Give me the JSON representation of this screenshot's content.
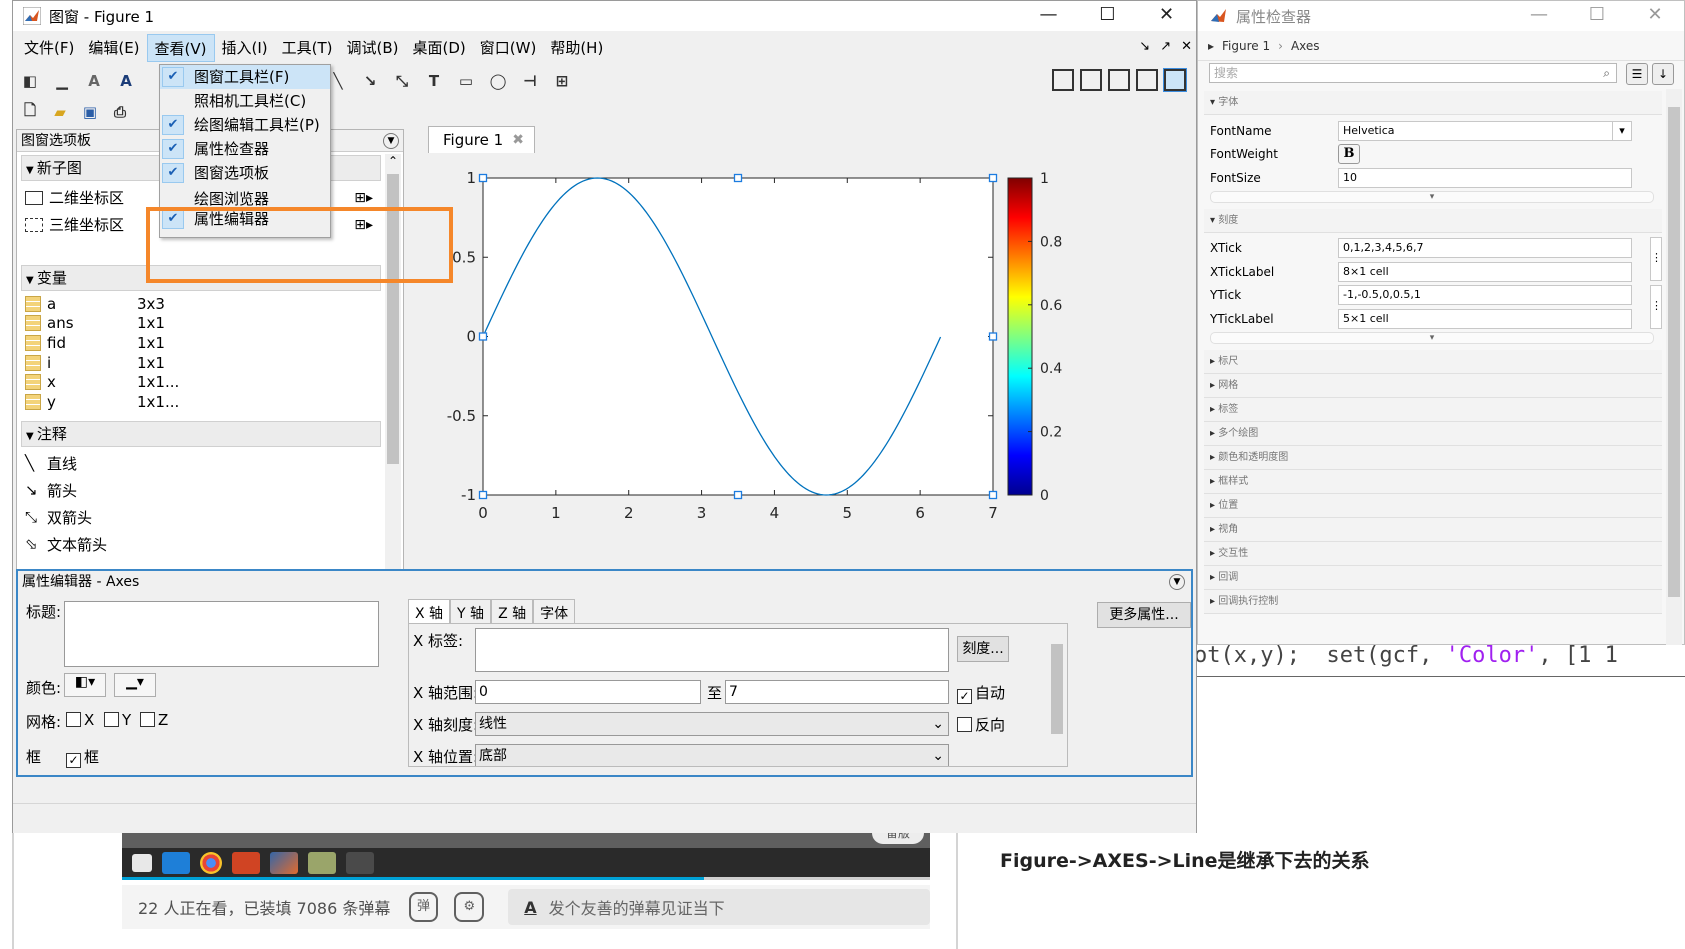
{
  "background": {
    "viewers_text": "22 人正在看，已装填 7086 条弹幕",
    "comment_placeholder": "发个友善的弹幕见证当下",
    "danmaku_icon1": "弹",
    "danmaku_icon2": "⚙",
    "pill_text": "备版",
    "caption": "Figure->AXES->Line是继承下去的关系",
    "code_prefix": "ot(x,y);  set(gcf, ",
    "code_string": "'Color'",
    "code_suffix": ", [1 1",
    "progress_fraction": 0.72
  },
  "figure_window": {
    "title": "图窗 - Figure 1",
    "menu": [
      "文件(F)",
      "编辑(E)",
      "查看(V)",
      "插入(I)",
      "工具(T)",
      "调试(B)",
      "桌面(D)",
      "窗口(W)",
      "帮助(H)"
    ],
    "active_menu_index": 2,
    "tab_label": "Figure 1",
    "palette": {
      "header": "图窗选项板",
      "section_subplot": "新子图",
      "subplot_items": [
        "二维坐标区",
        "三维坐标区"
      ],
      "section_variables": "变量",
      "variables": [
        {
          "name": "a",
          "size": "3x3"
        },
        {
          "name": "ans",
          "size": "1x1"
        },
        {
          "name": "fid",
          "size": "1x1"
        },
        {
          "name": "i",
          "size": "1x1"
        },
        {
          "name": "x",
          "size": "1x1..."
        },
        {
          "name": "y",
          "size": "1x1..."
        }
      ],
      "section_annotations": "注释",
      "annotations": [
        "直线",
        "箭头",
        "双箭头",
        "文本箭头"
      ]
    },
    "view_menu": {
      "items": [
        {
          "label": "图窗工具栏(F)",
          "checked": true
        },
        {
          "label": "照相机工具栏(C)",
          "checked": false
        },
        {
          "label": "绘图编辑工具栏(P)",
          "checked": true
        },
        {
          "label": "属性检查器",
          "checked": true
        },
        {
          "label": "图窗选项板",
          "checked": true
        },
        {
          "label": "绘图浏览器",
          "checked": false
        },
        {
          "label": "属性编辑器",
          "checked": true
        }
      ]
    },
    "property_editor": {
      "header": "属性编辑器 - Axes",
      "title_label": "标题:",
      "color_label": "颜色:",
      "grid_label": "网格:",
      "grid_x": "X",
      "grid_y": "Y",
      "grid_z": "Z",
      "box_label": "框",
      "box_checkbox": "框",
      "tabs": [
        "X 轴",
        "Y 轴",
        "Z 轴",
        "字体"
      ],
      "more_props": "更多属性...",
      "x_label": "X 标签:",
      "ticks_btn": "刻度...",
      "x_limits_label": "X 轴范围:",
      "x_min": "0",
      "to_label": "至",
      "x_max": "7",
      "auto_label": "自动",
      "x_scale_label": "X 轴刻度:",
      "x_scale_value": "线性",
      "reverse_label": "反向",
      "x_location_label": "X 轴位置:",
      "x_location_value": "底部"
    }
  },
  "chart_data": {
    "type": "line",
    "function": "y = sin(x)",
    "x_range": [
      0,
      6.28
    ],
    "xlim": [
      0,
      7
    ],
    "ylim": [
      -1,
      1
    ],
    "xticks": [
      "0",
      "1",
      "2",
      "3",
      "4",
      "5",
      "6",
      "7"
    ],
    "yticks": [
      "1",
      "0.5",
      "0",
      "-0.5",
      "-1"
    ],
    "line_color": "#0072bd",
    "colorbar": {
      "range": [
        0,
        1
      ],
      "ticks": [
        "1",
        "0.8",
        "0.6",
        "0.4",
        "0.2",
        "0"
      ],
      "colormap": "jet"
    },
    "selected": true
  },
  "inspector": {
    "title": "属性检查器",
    "breadcrumb": [
      "Figure 1",
      "Axes"
    ],
    "search_placeholder": "搜索",
    "sections_open": [
      {
        "title": "字体",
        "rows": [
          {
            "key": "FontName",
            "value": "Helvetica"
          },
          {
            "key": "FontWeight",
            "value": "B"
          },
          {
            "key": "FontSize",
            "value": "10"
          }
        ]
      },
      {
        "title": "刻度",
        "rows": [
          {
            "key": "XTick",
            "value": "0,1,2,3,4,5,6,7"
          },
          {
            "key": "XTickLabel",
            "value": "8×1 cell"
          },
          {
            "key": "YTick",
            "value": "-1,-0.5,0,0.5,1"
          },
          {
            "key": "YTickLabel",
            "value": "5×1 cell"
          }
        ]
      }
    ],
    "sections_closed": [
      "标尺",
      "网格",
      "标签",
      "多个绘图",
      "颜色和透明度图",
      "框样式",
      "位置",
      "视角",
      "交互性",
      "回调",
      "回调执行控制"
    ]
  }
}
